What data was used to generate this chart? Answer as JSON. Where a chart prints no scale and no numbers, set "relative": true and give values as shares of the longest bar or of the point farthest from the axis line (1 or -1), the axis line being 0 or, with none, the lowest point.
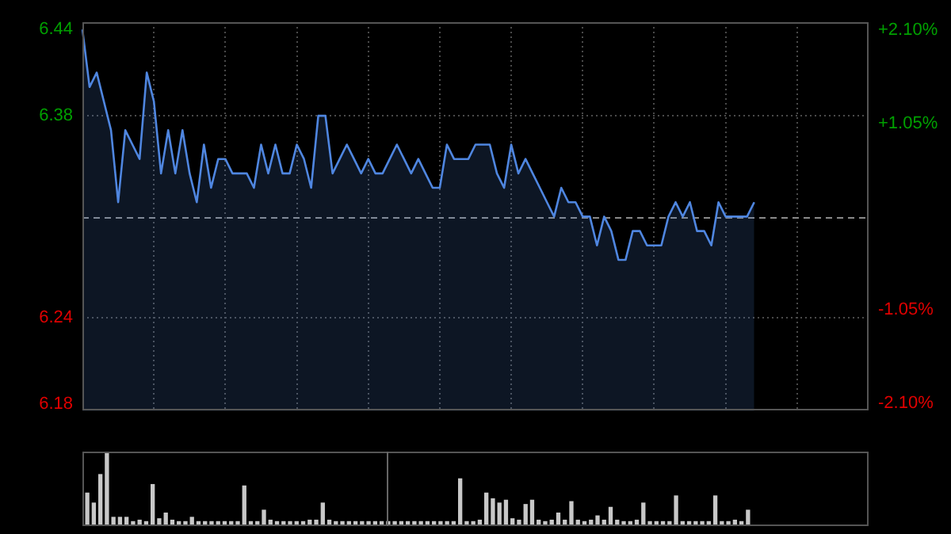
{
  "chart_data": [
    {
      "type": "area",
      "marker": "none",
      "grid": true,
      "categories": [
        null,
        null,
        null,
        null,
        null,
        null,
        null,
        null,
        null,
        null,
        null,
        null,
        null,
        null,
        null,
        null,
        null,
        null,
        null,
        null,
        null,
        null,
        null,
        null,
        null,
        null,
        null,
        null,
        null,
        null,
        null,
        null,
        null,
        null,
        null,
        null,
        null,
        null,
        null,
        null,
        null,
        null,
        null,
        null,
        null,
        null,
        null,
        null,
        null,
        null,
        null,
        null,
        null,
        null,
        null,
        null,
        null,
        null,
        null,
        null,
        null,
        null,
        null,
        null,
        null,
        null,
        null,
        null,
        null,
        null,
        null,
        null,
        null,
        null,
        null,
        null,
        null,
        null,
        null,
        null,
        null,
        null,
        null,
        null,
        null,
        null,
        null,
        null,
        null,
        null,
        null,
        null,
        null,
        null,
        null,
        null,
        null,
        null,
        null,
        null,
        null,
        null,
        null,
        null,
        null,
        null,
        null,
        null,
        null,
        null,
        null
      ],
      "series": [
        {
          "color": "#4f86e0",
          "values": [
            6.44,
            6.4,
            6.41,
            6.39,
            6.37,
            6.32,
            6.37,
            6.36,
            6.35,
            6.41,
            6.39,
            6.34,
            6.37,
            6.34,
            6.37,
            6.34,
            6.32,
            6.36,
            6.33,
            6.35,
            6.35,
            6.34,
            6.34,
            6.34,
            6.33,
            6.36,
            6.34,
            6.36,
            6.34,
            6.34,
            6.36,
            6.35,
            6.33,
            6.38,
            6.38,
            6.34,
            6.35,
            6.36,
            6.35,
            6.34,
            6.35,
            6.34,
            6.34,
            6.35,
            6.36,
            6.35,
            6.34,
            6.35,
            6.34,
            6.33,
            6.33,
            6.36,
            6.35,
            6.35,
            6.35,
            6.36,
            6.36,
            6.36,
            6.34,
            6.33,
            6.36,
            6.34,
            6.35,
            6.34,
            6.33,
            6.32,
            6.31,
            6.33,
            6.32,
            6.32,
            6.31,
            6.31,
            6.29,
            6.31,
            6.3,
            6.28,
            6.28,
            6.3,
            6.3,
            6.29,
            6.29,
            6.29,
            6.31,
            6.32,
            6.31,
            6.32,
            6.3,
            6.3,
            6.29,
            6.32,
            6.31,
            6.31,
            6.31,
            6.31,
            6.32,
            null,
            null,
            null,
            null,
            null,
            null,
            null,
            null,
            null,
            null,
            null,
            null,
            null,
            null,
            null,
            null
          ]
        }
      ],
      "ylim": [
        6.175,
        6.445
      ],
      "yticks": [
        {
          "value": 6.18,
          "label": "6.18"
        },
        {
          "value": 6.24,
          "label": "6.24"
        },
        {
          "value": 6.38,
          "label": "6.38"
        },
        {
          "value": 6.44,
          "label": "6.44"
        }
      ],
      "y2lim": [
        -2.19,
        2.19
      ],
      "y2ticks": [
        {
          "value": -2.1,
          "label": "-2.10%"
        },
        {
          "value": -1.05,
          "label": "-1.05%"
        },
        {
          "value": 1.05,
          "label": "+1.05%"
        },
        {
          "value": 2.1,
          "label": "+2.10%"
        }
      ],
      "ref_lines": [
        {
          "axis": "y",
          "value": 6.31,
          "line_style": "dashed"
        }
      ]
    },
    {
      "type": "bar",
      "relative": true,
      "color": "#c8c8c8",
      "categories": [
        null,
        null,
        null,
        null,
        null,
        null,
        null,
        null,
        null,
        null,
        null,
        null,
        null,
        null,
        null,
        null,
        null,
        null,
        null,
        null,
        null,
        null,
        null,
        null,
        null,
        null,
        null,
        null,
        null,
        null,
        null,
        null,
        null,
        null,
        null,
        null,
        null,
        null,
        null,
        null,
        null,
        null,
        null,
        null,
        null,
        null,
        null,
        null,
        null,
        null,
        null,
        null,
        null,
        null,
        null,
        null,
        null,
        null,
        null,
        null,
        null,
        null,
        null,
        null,
        null,
        null,
        null,
        null,
        null,
        null,
        null,
        null,
        null,
        null,
        null,
        null,
        null,
        null,
        null,
        null,
        null,
        null,
        null,
        null,
        null,
        null,
        null,
        null,
        null,
        null,
        null,
        null,
        null,
        null,
        null,
        null,
        null,
        null,
        null,
        null,
        null,
        null
      ],
      "values": [
        0.44,
        0.3,
        0.7,
        1,
        0.1,
        0.1,
        0.1,
        0.04,
        0.06,
        0.04,
        0.56,
        0.08,
        0.16,
        0.06,
        0.04,
        0.04,
        0.1,
        0.04,
        0.04,
        0.04,
        0.04,
        0.04,
        0.04,
        0.04,
        0.54,
        0.04,
        0.04,
        0.2,
        0.06,
        0.04,
        0.04,
        0.04,
        0.04,
        0.04,
        0.06,
        0.06,
        0.3,
        0.06,
        0.04,
        0.04,
        0.04,
        0.04,
        0.04,
        0.04,
        0.04,
        0.04,
        0.04,
        0.04,
        0.04,
        0.04,
        0.04,
        0.04,
        0.04,
        0.04,
        0.04,
        0.04,
        0.04,
        0.64,
        0.04,
        0.04,
        0.06,
        0.44,
        0.36,
        0.3,
        0.34,
        0.08,
        0.06,
        0.28,
        0.34,
        0.06,
        0.04,
        0.06,
        0.16,
        0.06,
        0.32,
        0.06,
        0.04,
        0.06,
        0.12,
        0.06,
        0.24,
        0.06,
        0.04,
        0.04,
        0.06,
        0.3,
        0.04,
        0.04,
        0.04,
        0.04,
        0.4,
        0.04,
        0.04,
        0.04,
        0.04,
        0.04,
        0.4,
        0.04,
        0.04,
        0.06,
        0.04,
        0.2
      ]
    }
  ]
}
